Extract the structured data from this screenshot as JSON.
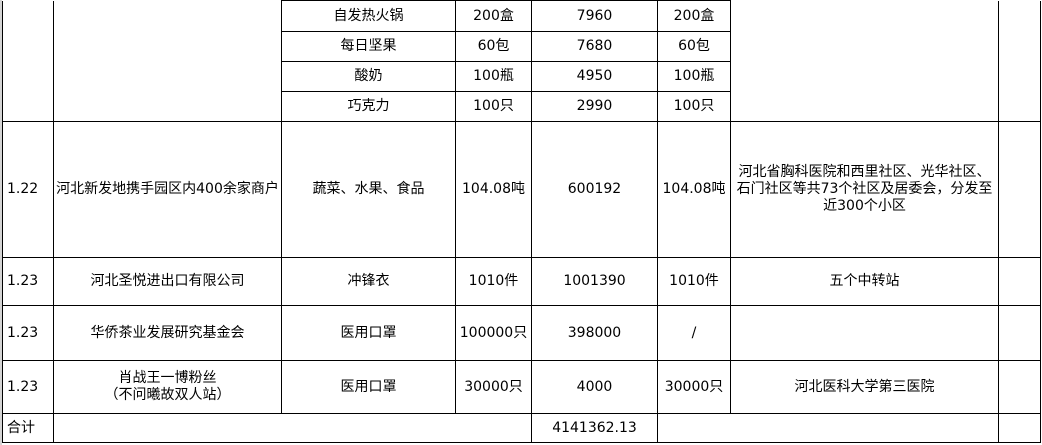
{
  "rows_top": [
    {
      "item": "自发热火锅",
      "qty": "200盒",
      "amount": "7960",
      "delivered": "200盒"
    },
    {
      "item": "每日坚果",
      "qty": "60包",
      "amount": "7680",
      "delivered": "60包"
    },
    {
      "item": "酸奶",
      "qty": "100瓶",
      "amount": "4950",
      "delivered": "100瓶"
    },
    {
      "item": "巧克力",
      "qty": "100只",
      "amount": "2990",
      "delivered": "100只"
    }
  ],
  "rows": [
    {
      "date": "1.22",
      "donor": "河北新发地携手园区内400余家商户",
      "item": "蔬菜、水果、食品",
      "qty": "104.08吨",
      "amount": "600192",
      "delivered": "104.08吨",
      "recipient": "河北省胸科医院和西里社区、光华社区、石门社区等共73个社区及居委会，分发至近300个小区"
    },
    {
      "date": "1.23",
      "donor": "河北圣悦进出口有限公司",
      "item": "冲锋衣",
      "qty": "1010件",
      "amount": "1001390",
      "delivered": "1010件",
      "recipient": "五个中转站"
    },
    {
      "date": "1.23",
      "donor": "华侨茶业发展研究基金会",
      "item": "医用口罩",
      "qty": "100000只",
      "amount": "398000",
      "delivered": "/",
      "recipient": ""
    },
    {
      "date": "1.23",
      "donor": "肖战王一博粉丝\n（不问曦故双人站）",
      "donor_line1": "肖战王一博粉丝",
      "donor_line2": "（不问曦故双人站）",
      "item": "医用口罩",
      "qty": "30000只",
      "amount": "4000",
      "delivered": "30000只",
      "recipient": "河北医科大学第三医院"
    }
  ],
  "total": {
    "label": "合计",
    "amount": "4141362.13"
  }
}
